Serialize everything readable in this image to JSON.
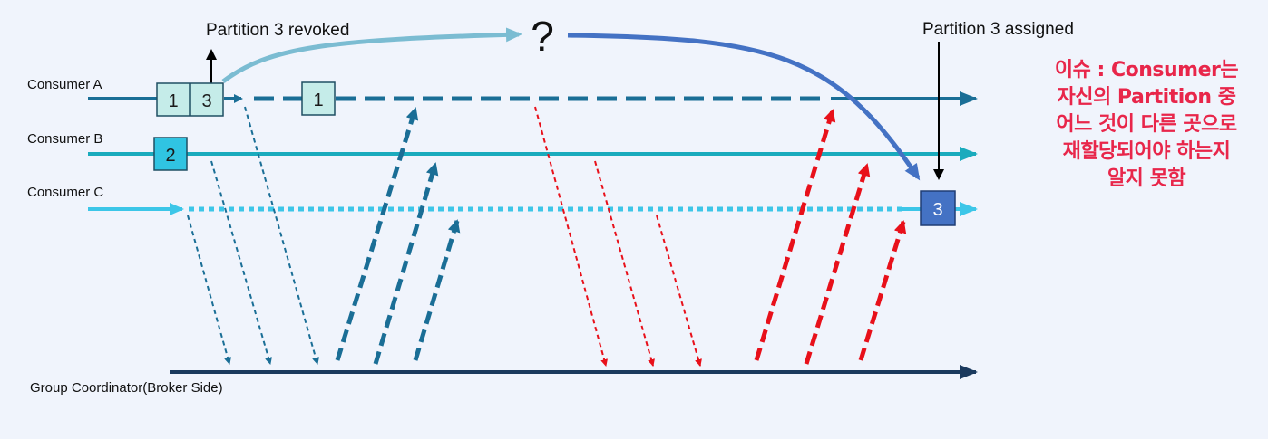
{
  "consumers": {
    "a": "Consumer A",
    "b": "Consumer B",
    "c": "Consumer C"
  },
  "coordinator": "Group Coordinator(Broker Side)",
  "events": {
    "revoked": "Partition 3 revoked",
    "assigned": "Partition 3 assigned",
    "question": "?"
  },
  "partitions": {
    "a_p1": "1",
    "a_p3": "3",
    "a_p1_later": "1",
    "b_p2": "2",
    "c_p3": "3"
  },
  "issue_note": [
    "이슈 : Consumer는",
    "자신의 Partition 중",
    "어느 것이 다른 곳으로",
    "재할당되어야 하는지",
    "알지 못함"
  ],
  "colors": {
    "consumer_a": "#1a6e96",
    "consumer_b": "#1aabbd",
    "consumer_c": "#3cc6e8",
    "coordinator": "#1b3a5e",
    "request": "#e8101a",
    "issue": "#e8264a",
    "partition_a": "#c5ece9",
    "partition_b": "#30c4e2",
    "partition_c": "#4472c4"
  }
}
